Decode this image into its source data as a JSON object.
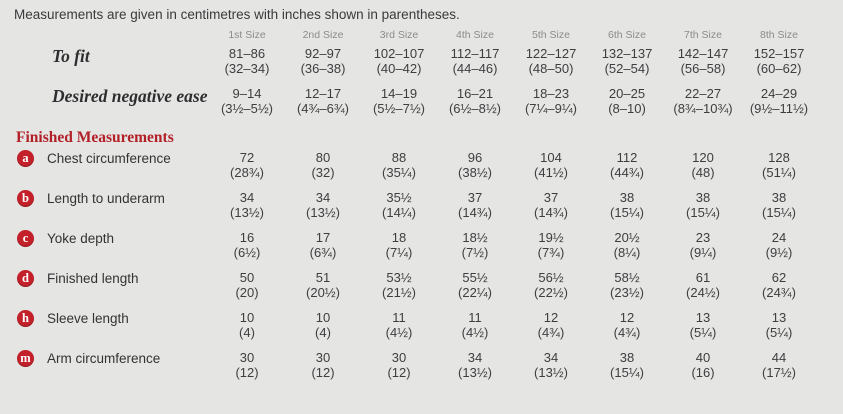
{
  "intro": "Measurements are given in centimetres with inches shown in parentheses.",
  "size_headers": [
    "1st Size",
    "2nd Size",
    "3rd Size",
    "4th Size",
    "5th Size",
    "6th Size",
    "7th Size",
    "8th Size"
  ],
  "fit_rows": [
    {
      "label": "To fit",
      "cells": [
        {
          "cm": "81–86",
          "in": "(32–34)"
        },
        {
          "cm": "92–97",
          "in": "(36–38)"
        },
        {
          "cm": "102–107",
          "in": "(40–42)"
        },
        {
          "cm": "112–117",
          "in": "(44–46)"
        },
        {
          "cm": "122–127",
          "in": "(48–50)"
        },
        {
          "cm": "132–137",
          "in": "(52–54)"
        },
        {
          "cm": "142–147",
          "in": "(56–58)"
        },
        {
          "cm": "152–157",
          "in": "(60–62)"
        }
      ]
    },
    {
      "label": "Desired negative ease",
      "cells": [
        {
          "cm": "9–14",
          "in": "(3½–5½)"
        },
        {
          "cm": "12–17",
          "in": "(4¾–6¾)"
        },
        {
          "cm": "14–19",
          "in": "(5½–7½)"
        },
        {
          "cm": "16–21",
          "in": "(6½–8½)"
        },
        {
          "cm": "18–23",
          "in": "(7¼–9¼)"
        },
        {
          "cm": "20–25",
          "in": "(8–10)"
        },
        {
          "cm": "22–27",
          "in": "(8¾–10¾)"
        },
        {
          "cm": "24–29",
          "in": "(9½–11½)"
        }
      ]
    }
  ],
  "section_heading": "Finished Measurements",
  "measurement_rows": [
    {
      "key": "a",
      "label": "Chest circumference",
      "cells": [
        {
          "cm": "72",
          "in": "(28¾)"
        },
        {
          "cm": "80",
          "in": "(32)"
        },
        {
          "cm": "88",
          "in": "(35¼)"
        },
        {
          "cm": "96",
          "in": "(38½)"
        },
        {
          "cm": "104",
          "in": "(41½)"
        },
        {
          "cm": "112",
          "in": "(44¾)"
        },
        {
          "cm": "120",
          "in": "(48)"
        },
        {
          "cm": "128",
          "in": "(51¼)"
        }
      ]
    },
    {
      "key": "b",
      "label": "Length to underarm",
      "cells": [
        {
          "cm": "34",
          "in": "(13½)"
        },
        {
          "cm": "34",
          "in": "(13½)"
        },
        {
          "cm": "35½",
          "in": "(14¼)"
        },
        {
          "cm": "37",
          "in": "(14¾)"
        },
        {
          "cm": "37",
          "in": "(14¾)"
        },
        {
          "cm": "38",
          "in": "(15¼)"
        },
        {
          "cm": "38",
          "in": "(15¼)"
        },
        {
          "cm": "38",
          "in": "(15¼)"
        }
      ]
    },
    {
      "key": "c",
      "label": "Yoke depth",
      "cells": [
        {
          "cm": "16",
          "in": "(6½)"
        },
        {
          "cm": "17",
          "in": "(6¾)"
        },
        {
          "cm": "18",
          "in": "(7¼)"
        },
        {
          "cm": "18½",
          "in": "(7½)"
        },
        {
          "cm": "19½",
          "in": "(7¾)"
        },
        {
          "cm": "20½",
          "in": "(8¼)"
        },
        {
          "cm": "23",
          "in": "(9¼)"
        },
        {
          "cm": "24",
          "in": "(9½)"
        }
      ]
    },
    {
      "key": "d",
      "label": "Finished length",
      "cells": [
        {
          "cm": "50",
          "in": "(20)"
        },
        {
          "cm": "51",
          "in": "(20½)"
        },
        {
          "cm": "53½",
          "in": "(21½)"
        },
        {
          "cm": "55½",
          "in": "(22¼)"
        },
        {
          "cm": "56½",
          "in": "(22½)"
        },
        {
          "cm": "58½",
          "in": "(23½)"
        },
        {
          "cm": "61",
          "in": "(24½)"
        },
        {
          "cm": "62",
          "in": "(24¾)"
        }
      ]
    },
    {
      "key": "h",
      "label": "Sleeve length",
      "cells": [
        {
          "cm": "10",
          "in": "(4)"
        },
        {
          "cm": "10",
          "in": "(4)"
        },
        {
          "cm": "11",
          "in": "(4½)"
        },
        {
          "cm": "11",
          "in": "(4½)"
        },
        {
          "cm": "12",
          "in": "(4¾)"
        },
        {
          "cm": "12",
          "in": "(4¾)"
        },
        {
          "cm": "13",
          "in": "(5¼)"
        },
        {
          "cm": "13",
          "in": "(5¼)"
        }
      ]
    },
    {
      "key": "m",
      "label": "Arm circumference",
      "cells": [
        {
          "cm": "30",
          "in": "(12)"
        },
        {
          "cm": "30",
          "in": "(12)"
        },
        {
          "cm": "30",
          "in": "(12)"
        },
        {
          "cm": "34",
          "in": "(13½)"
        },
        {
          "cm": "34",
          "in": "(13½)"
        },
        {
          "cm": "38",
          "in": "(15¼)"
        },
        {
          "cm": "40",
          "in": "(16)"
        },
        {
          "cm": "44",
          "in": "(17½)"
        }
      ]
    }
  ],
  "colors": {
    "background": "#e5e5e3",
    "accent_red": "#c3202a",
    "heading_red": "#b22028",
    "text": "#3e3e40",
    "header_gray": "#8b8b8b"
  }
}
